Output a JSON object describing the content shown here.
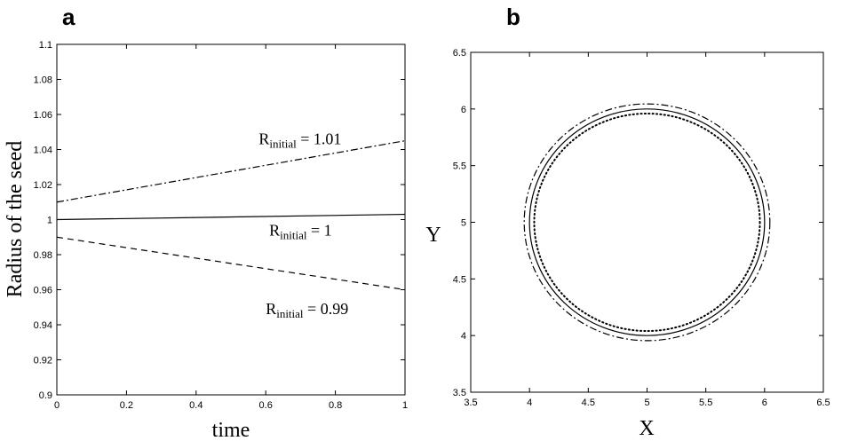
{
  "chart_data": [
    {
      "panel": "a",
      "type": "line",
      "xlabel": "time",
      "ylabel": "Radius of the seed",
      "xlim": [
        0,
        1
      ],
      "ylim": [
        0.9,
        1.1
      ],
      "xticks": [
        "0",
        "0.2",
        "0.4",
        "0.6",
        "0.8",
        "1"
      ],
      "yticks": [
        "0.9",
        "0.92",
        "0.94",
        "0.96",
        "0.98",
        "1",
        "1.02",
        "1.04",
        "1.06",
        "1.08",
        "1.1"
      ],
      "grid": false,
      "series": [
        {
          "style": "dash-dot",
          "x": [
            0,
            1
          ],
          "y": [
            1.01,
            1.045
          ]
        },
        {
          "style": "solid",
          "x": [
            0,
            1
          ],
          "y": [
            1.0,
            1.003
          ]
        },
        {
          "style": "dashed",
          "x": [
            0,
            1
          ],
          "y": [
            0.99,
            0.96
          ]
        }
      ],
      "annotations": [
        {
          "main": "R",
          "sub": "initial",
          "rest": " = 1.01",
          "x": 0.58,
          "y": 1.043
        },
        {
          "main": "R",
          "sub": "initial",
          "rest": " = 1",
          "x": 0.61,
          "y": 0.991
        },
        {
          "main": "R",
          "sub": "initial",
          "rest": " = 0.99",
          "x": 0.6,
          "y": 0.946
        }
      ]
    },
    {
      "panel": "b",
      "type": "line",
      "xlabel": "X",
      "ylabel": "Y",
      "xlim": [
        3.5,
        6.5
      ],
      "ylim": [
        3.5,
        6.5
      ],
      "xticks": [
        "3.5",
        "4",
        "4.5",
        "5",
        "5.5",
        "6",
        "6.5"
      ],
      "yticks": [
        "3.5",
        "4",
        "4.5",
        "5",
        "5.5",
        "6",
        "6.5"
      ],
      "grid": false,
      "circles": [
        {
          "style": "dash-dot",
          "cx": 5,
          "cy": 5,
          "r": 1.045
        },
        {
          "style": "solid",
          "cx": 5,
          "cy": 5,
          "r": 1.0
        },
        {
          "style": "dotted",
          "cx": 5,
          "cy": 5,
          "r": 0.96
        }
      ]
    }
  ]
}
